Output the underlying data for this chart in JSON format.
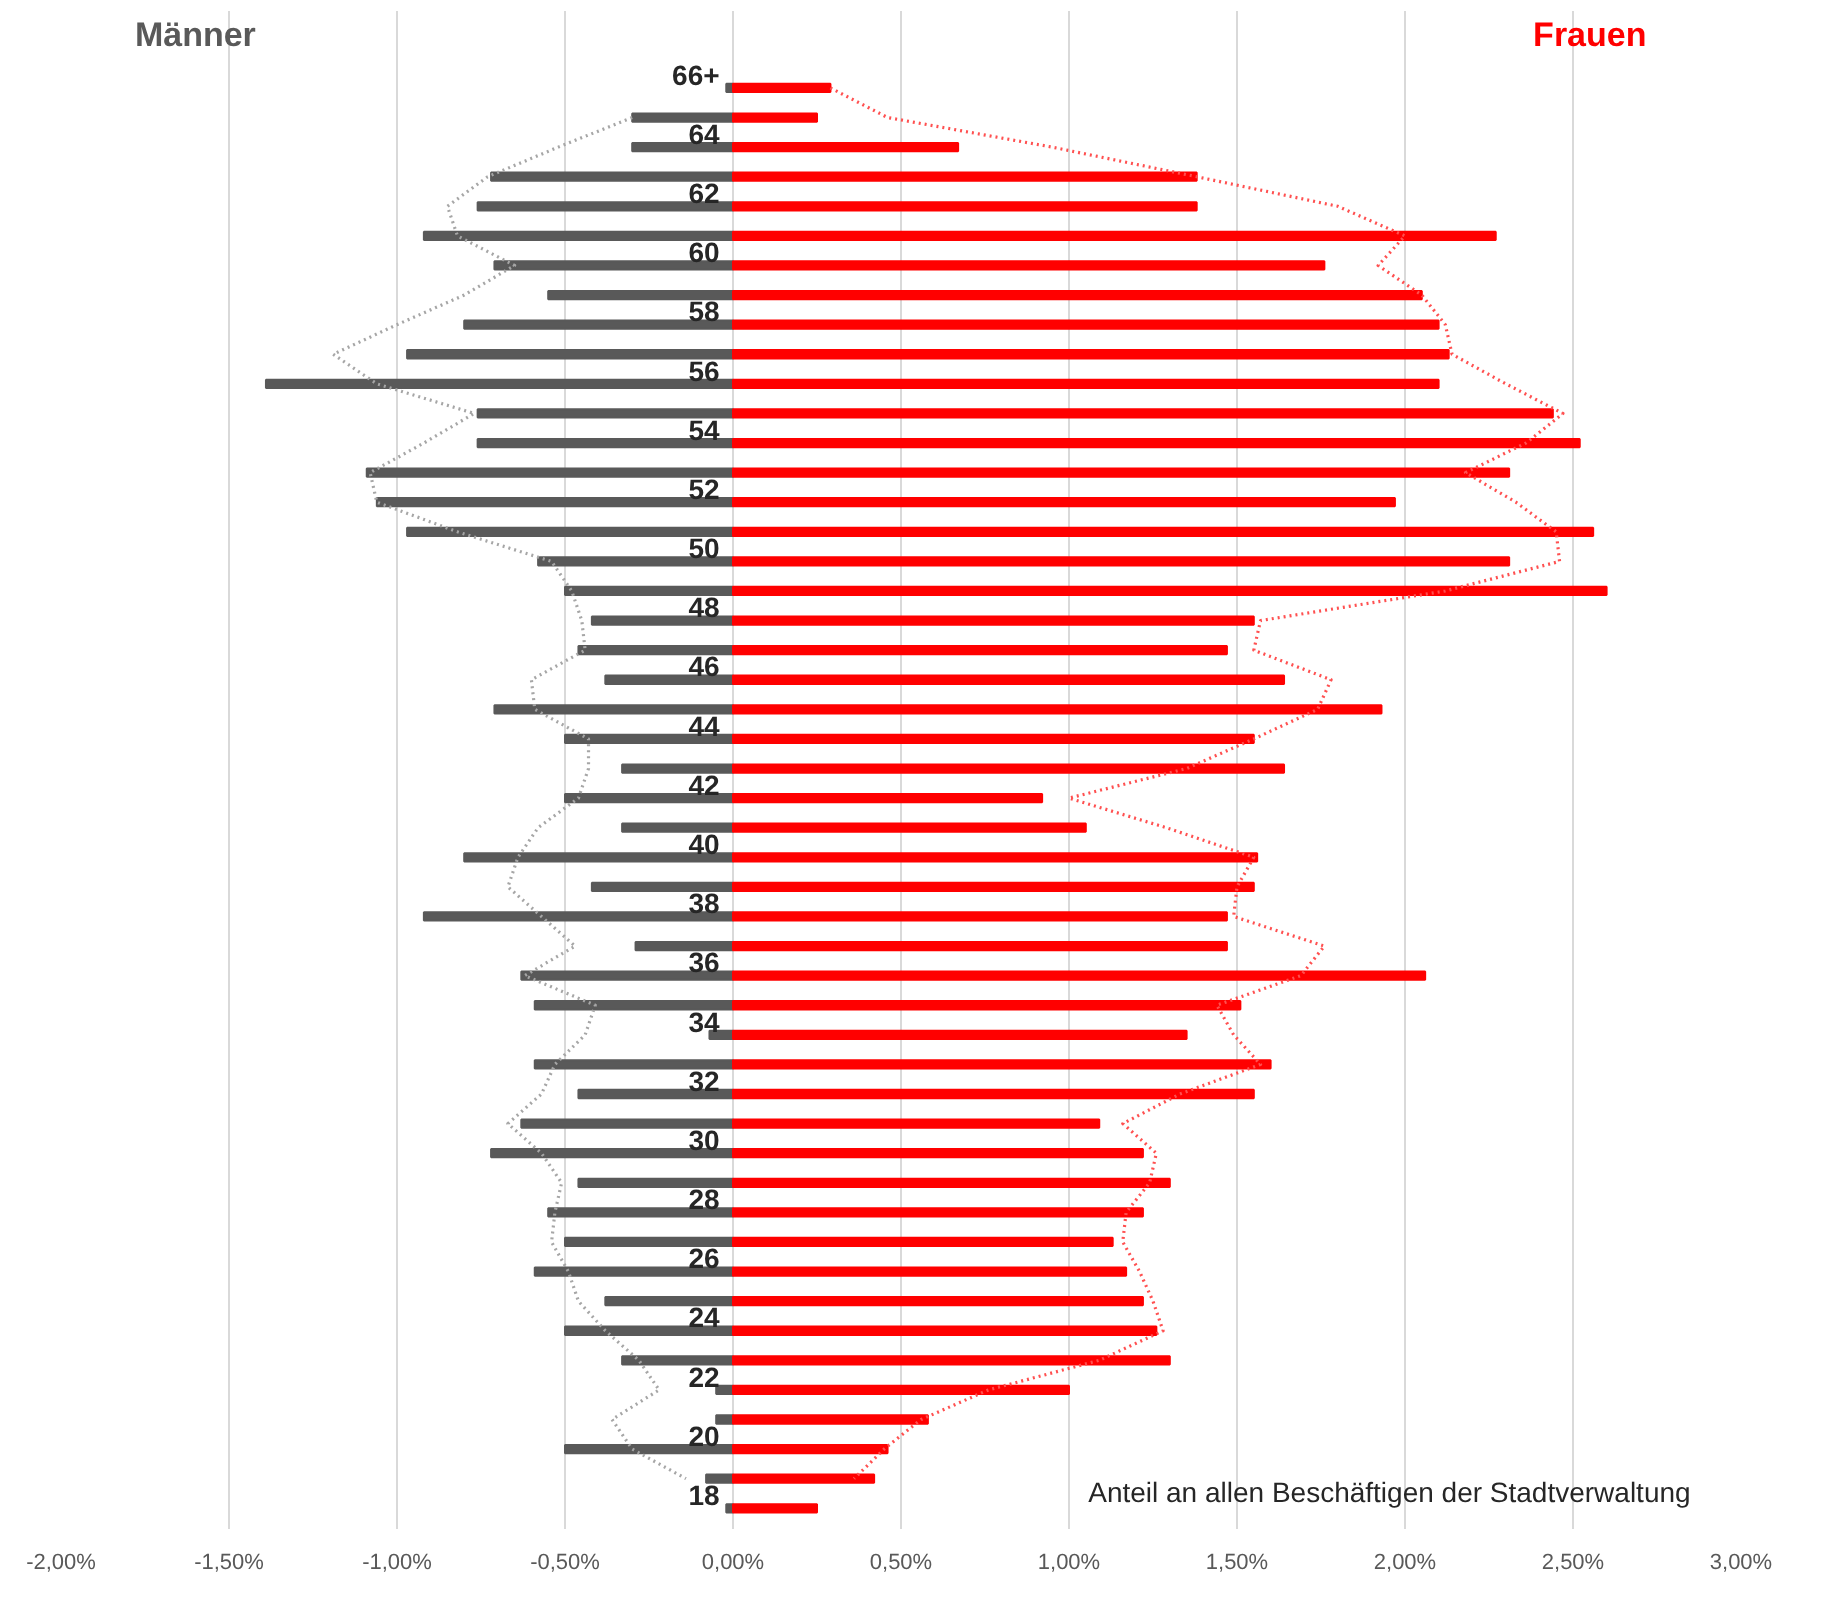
{
  "chart_data": {
    "type": "bar",
    "orientation": "horizontal",
    "categories": [
      "66+",
      null,
      "64",
      null,
      "62",
      null,
      "60",
      null,
      "58",
      null,
      "56",
      null,
      "54",
      null,
      "52",
      null,
      "50",
      null,
      "48",
      null,
      "46",
      null,
      "44",
      null,
      "42",
      null,
      "40",
      null,
      "38",
      null,
      "36",
      null,
      "34",
      null,
      "32",
      null,
      "30",
      null,
      "28",
      null,
      "26",
      null,
      "24",
      null,
      "22",
      null,
      "20",
      null,
      "18"
    ],
    "series": [
      {
        "name": "Männer",
        "color": "#595959",
        "values": [
          -0.02,
          -0.3,
          -0.3,
          -0.72,
          -0.76,
          -0.92,
          -0.71,
          -0.55,
          -0.8,
          -0.97,
          -1.39,
          -0.76,
          -0.76,
          -1.09,
          -1.06,
          -0.97,
          -0.58,
          -0.5,
          -0.42,
          -0.46,
          -0.38,
          -0.71,
          -0.5,
          -0.33,
          -0.5,
          -0.33,
          -0.8,
          -0.42,
          -0.92,
          -0.29,
          -0.63,
          -0.59,
          -0.07,
          -0.59,
          -0.46,
          -0.63,
          -0.72,
          -0.46,
          -0.55,
          -0.5,
          -0.59,
          -0.38,
          -0.5,
          -0.33,
          -0.05,
          -0.05,
          -0.5,
          -0.08,
          -0.02
        ]
      },
      {
        "name": "Frauen",
        "color": "#ff0000",
        "values": [
          0.29,
          0.25,
          0.67,
          1.38,
          1.38,
          2.27,
          1.76,
          2.05,
          2.1,
          2.13,
          2.1,
          2.44,
          2.52,
          2.31,
          1.97,
          2.56,
          2.31,
          2.6,
          1.55,
          1.47,
          1.64,
          1.93,
          1.55,
          1.64,
          0.92,
          1.05,
          1.56,
          1.55,
          1.47,
          1.47,
          2.06,
          1.51,
          1.35,
          1.6,
          1.55,
          1.09,
          1.22,
          1.3,
          1.22,
          1.13,
          1.17,
          1.22,
          1.26,
          1.3,
          1.0,
          0.58,
          0.46,
          0.42,
          0.25
        ]
      },
      {
        "type": "line",
        "line_style": "dotted",
        "color": "#a6a6a6",
        "values": [
          null,
          -0.3,
          -0.52,
          -0.73,
          -0.85,
          -0.82,
          -0.65,
          -0.8,
          -1.0,
          -1.19,
          -1.06,
          -0.77,
          -0.92,
          -1.08,
          -1.06,
          -0.82,
          -0.54,
          -0.48,
          -0.45,
          -0.44,
          -0.6,
          -0.59,
          -0.43,
          -0.43,
          -0.46,
          -0.58,
          -0.64,
          -0.67,
          -0.57,
          -0.47,
          -0.62,
          -0.41,
          -0.44,
          -0.53,
          -0.57,
          -0.67,
          -0.57,
          -0.51,
          -0.53,
          -0.54,
          -0.49,
          -0.46,
          -0.38,
          -0.28,
          -0.22,
          -0.36,
          -0.3,
          -0.14,
          null
        ]
      },
      {
        "type": "line",
        "line_style": "dotted",
        "color": "#ff5050",
        "values": [
          0.29,
          0.46,
          0.95,
          1.38,
          1.8,
          2.0,
          1.92,
          2.05,
          2.12,
          2.14,
          2.3,
          2.47,
          2.36,
          2.18,
          2.33,
          2.45,
          2.46,
          2.12,
          1.57,
          1.55,
          1.78,
          1.74,
          1.55,
          1.35,
          1.0,
          1.29,
          1.55,
          1.5,
          1.49,
          1.76,
          1.69,
          1.44,
          1.49,
          1.57,
          1.33,
          1.16,
          1.26,
          1.24,
          1.17,
          1.16,
          1.21,
          1.25,
          1.28,
          1.09,
          0.76,
          0.56,
          0.45,
          0.36,
          null
        ]
      }
    ],
    "xlim": [
      -2,
      3
    ],
    "stacked": true,
    "xticks": [
      {
        "value": -2,
        "label": "-2,00%"
      },
      {
        "value": -1.5,
        "label": "-1,50%"
      },
      {
        "value": -1,
        "label": "-1,00%"
      },
      {
        "value": -0.5,
        "label": "-0,50%"
      },
      {
        "value": 0,
        "label": "0,00%"
      },
      {
        "value": 0.5,
        "label": "0,50%"
      },
      {
        "value": 1,
        "label": "1,00%"
      },
      {
        "value": 1.5,
        "label": "1,50%"
      },
      {
        "value": 2,
        "label": "2,00%"
      },
      {
        "value": 2.5,
        "label": "2,50%"
      },
      {
        "value": 3,
        "label": "3,00%"
      }
    ],
    "grid": "x",
    "marker": "none",
    "annotations": [
      "Anteil an allen Beschäftigen der Stadtverwaltung"
    ]
  }
}
